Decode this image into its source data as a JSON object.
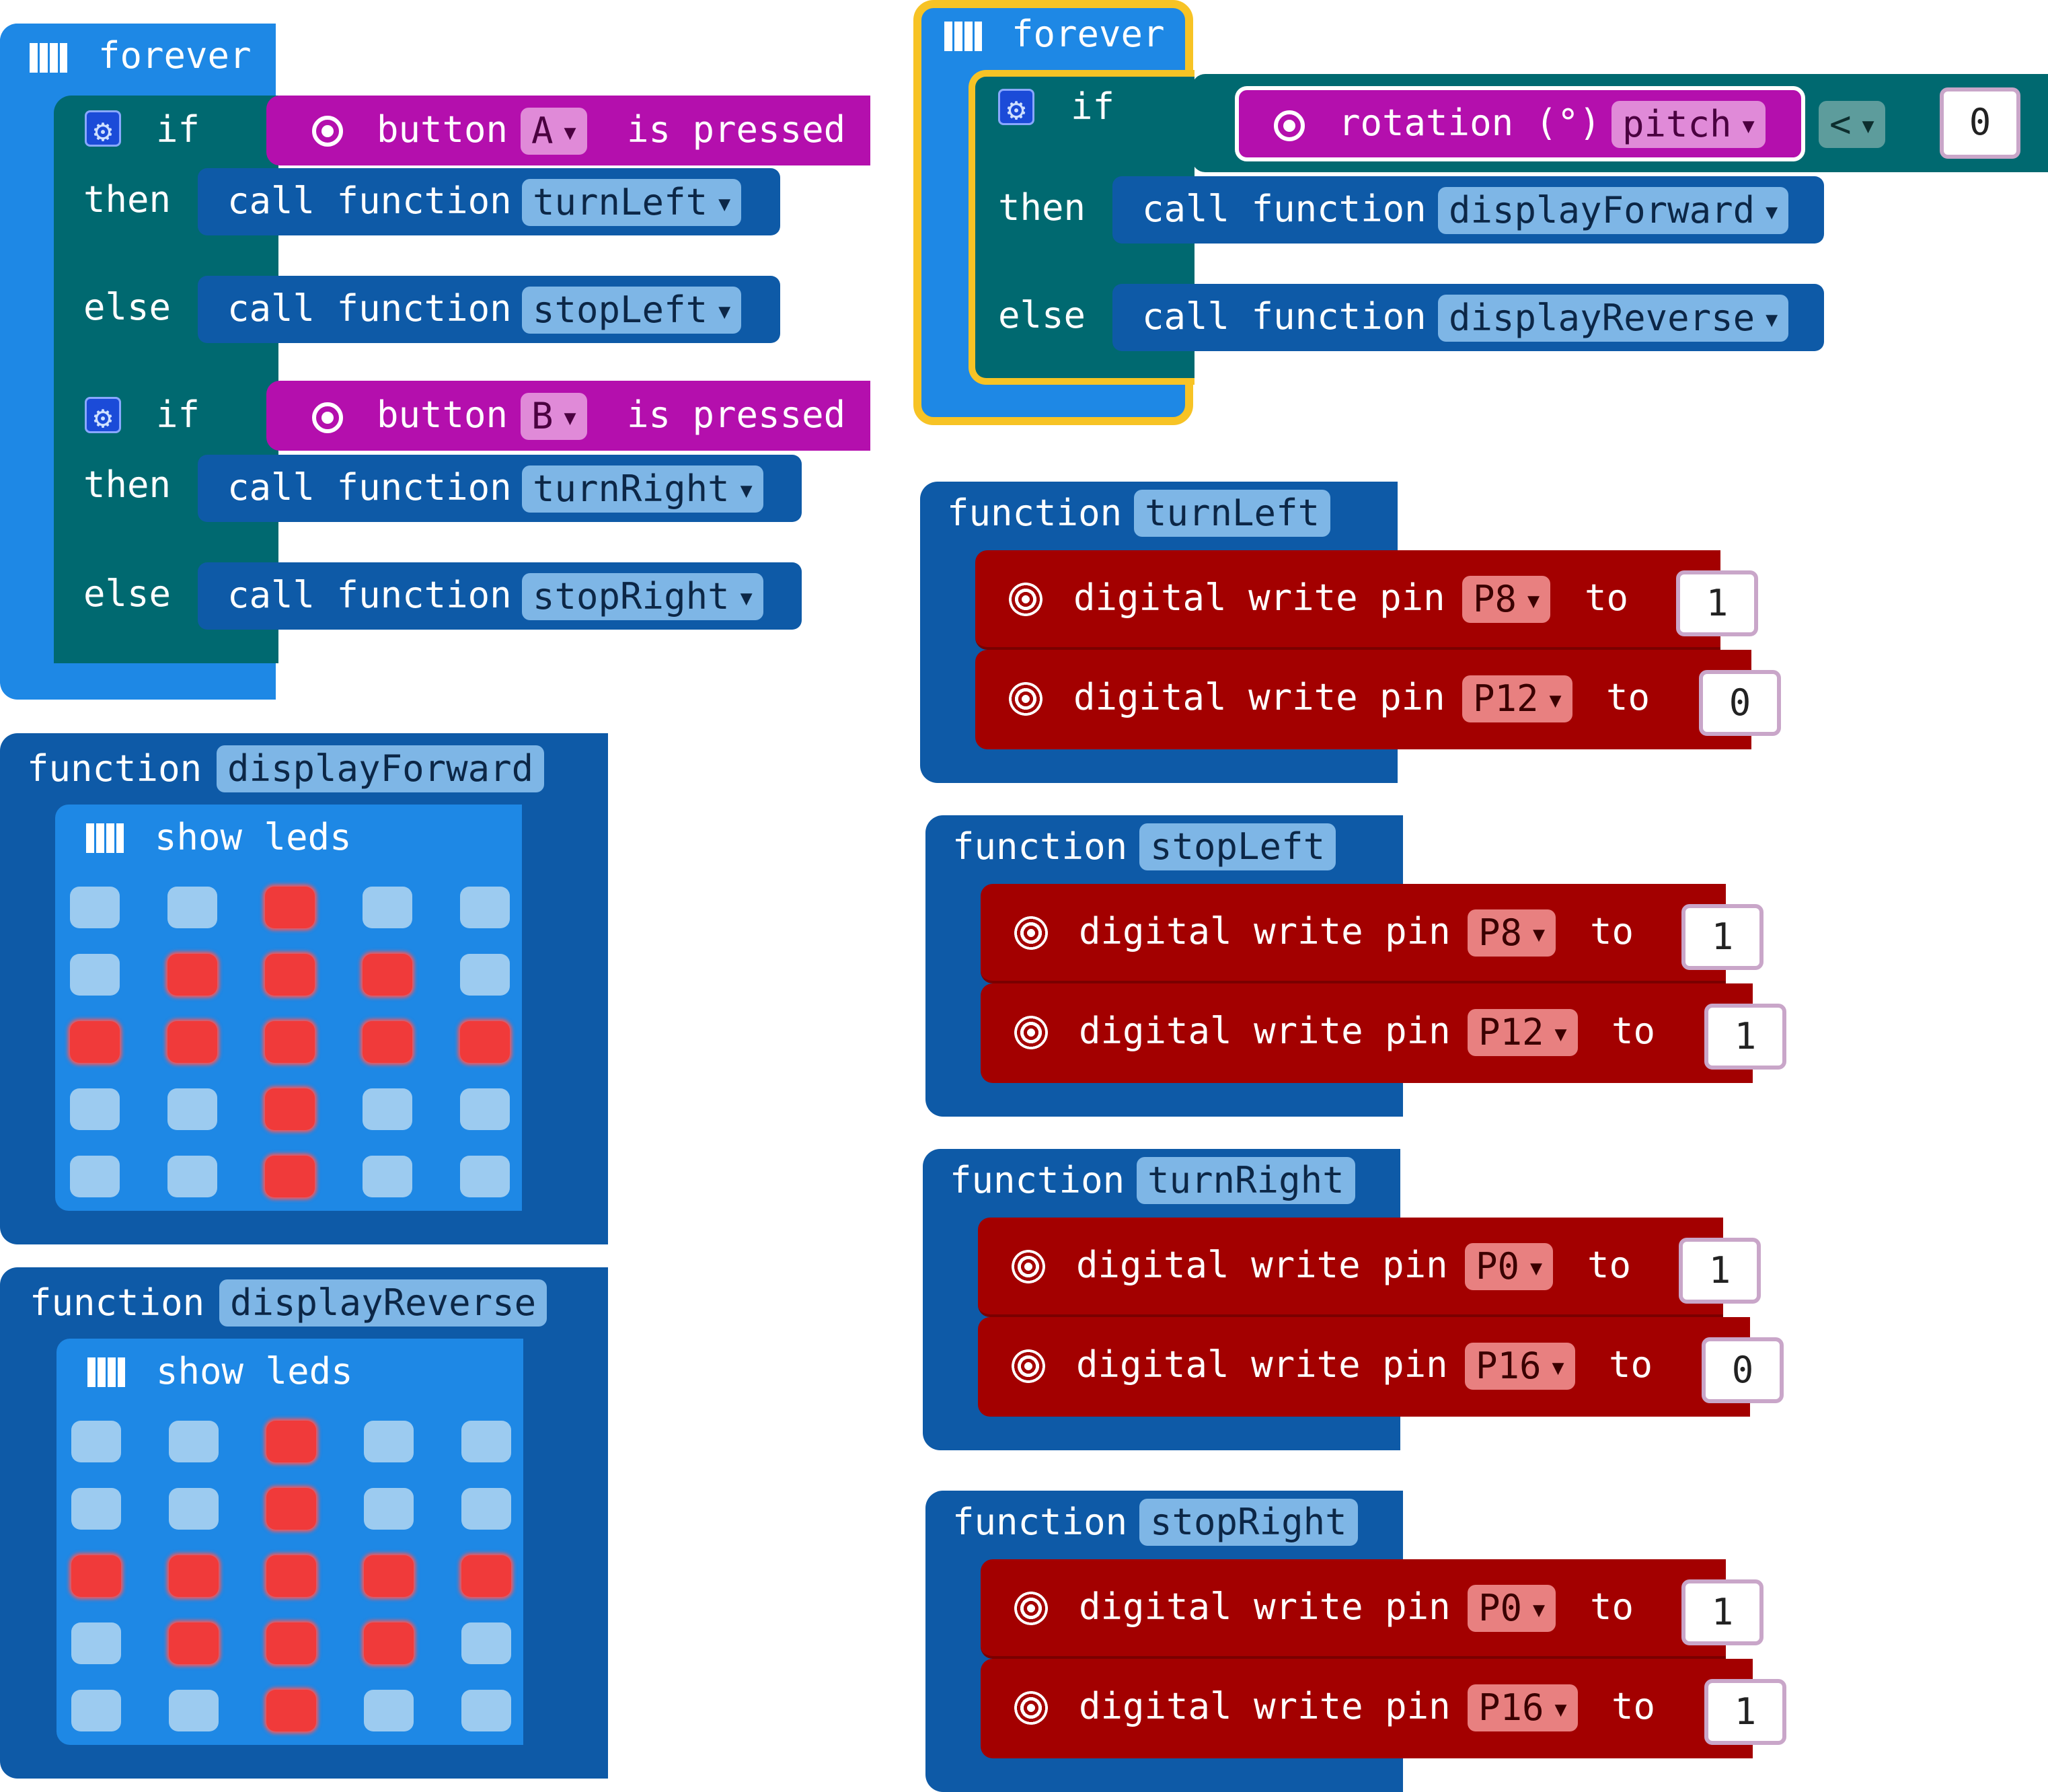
{
  "colors": {
    "loops_blue": "#1e88e5",
    "function_blue": "#0e5aa7",
    "logic_teal": "#006970",
    "input_magenta": "#b40fad",
    "pins_red": "#a30000",
    "selected_outline": "#f7c325",
    "led_on": "#f03a3a",
    "led_off": "#9ccbf0"
  },
  "forever1": {
    "label": "forever",
    "if1": {
      "if_label": "if",
      "condition": {
        "button_label": "button",
        "button_value": "A",
        "suffix": "is pressed"
      },
      "then_label": "then",
      "then_call": {
        "call_label": "call function",
        "name": "turnLeft"
      },
      "else_label": "else",
      "else_call": {
        "call_label": "call function",
        "name": "stopLeft"
      }
    },
    "if2": {
      "if_label": "if",
      "condition": {
        "button_label": "button",
        "button_value": "B",
        "suffix": "is pressed"
      },
      "then_label": "then",
      "then_call": {
        "call_label": "call function",
        "name": "turnRight"
      },
      "else_label": "else",
      "else_call": {
        "call_label": "call function",
        "name": "stopRight"
      }
    }
  },
  "forever2": {
    "label": "forever",
    "if_label": "if",
    "condition": {
      "rotation_label": "rotation (°)",
      "axis": "pitch",
      "operator": "<",
      "value": "0"
    },
    "then_label": "then",
    "then_call": {
      "call_label": "call function",
      "name": "displayForward"
    },
    "else_label": "else",
    "else_call": {
      "call_label": "call function",
      "name": "displayReverse"
    }
  },
  "displayForward": {
    "function_label": "function",
    "name": "displayForward",
    "show_leds_label": "show leds",
    "grid": [
      [
        0,
        0,
        1,
        0,
        0
      ],
      [
        0,
        1,
        1,
        1,
        0
      ],
      [
        1,
        1,
        1,
        1,
        1
      ],
      [
        0,
        0,
        1,
        0,
        0
      ],
      [
        0,
        0,
        1,
        0,
        0
      ]
    ]
  },
  "displayReverse": {
    "function_label": "function",
    "name": "displayReverse",
    "show_leds_label": "show leds",
    "grid": [
      [
        0,
        0,
        1,
        0,
        0
      ],
      [
        0,
        0,
        1,
        0,
        0
      ],
      [
        1,
        1,
        1,
        1,
        1
      ],
      [
        0,
        1,
        1,
        1,
        0
      ],
      [
        0,
        0,
        1,
        0,
        0
      ]
    ]
  },
  "pin_functions": [
    {
      "function_label": "function",
      "name": "turnLeft",
      "writes": [
        {
          "label": "digital write pin",
          "pin": "P8",
          "to": "to",
          "value": "1"
        },
        {
          "label": "digital write pin",
          "pin": "P12",
          "to": "to",
          "value": "0"
        }
      ]
    },
    {
      "function_label": "function",
      "name": "stopLeft",
      "writes": [
        {
          "label": "digital write pin",
          "pin": "P8",
          "to": "to",
          "value": "1"
        },
        {
          "label": "digital write pin",
          "pin": "P12",
          "to": "to",
          "value": "1"
        }
      ]
    },
    {
      "function_label": "function",
      "name": "turnRight",
      "writes": [
        {
          "label": "digital write pin",
          "pin": "P0",
          "to": "to",
          "value": "1"
        },
        {
          "label": "digital write pin",
          "pin": "P16",
          "to": "to",
          "value": "0"
        }
      ]
    },
    {
      "function_label": "function",
      "name": "stopRight",
      "writes": [
        {
          "label": "digital write pin",
          "pin": "P0",
          "to": "to",
          "value": "1"
        },
        {
          "label": "digital write pin",
          "pin": "P16",
          "to": "to",
          "value": "1"
        }
      ]
    }
  ]
}
